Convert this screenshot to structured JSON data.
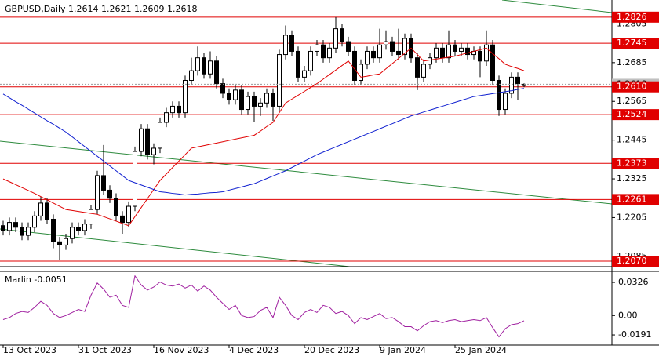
{
  "header": "GBPUSD,Daily  1.2614 1.2621 1.2609 1.2618",
  "chart_data": [
    {
      "type": "candlestick",
      "categories": [
        "13 Oct 2023",
        null,
        null,
        null,
        null,
        null,
        null,
        null,
        null,
        null,
        null,
        null,
        "31 Oct 2023",
        null,
        null,
        null,
        null,
        null,
        null,
        null,
        null,
        null,
        null,
        null,
        "16 Nov 2023",
        null,
        null,
        null,
        null,
        null,
        null,
        null,
        null,
        null,
        null,
        null,
        "4 Dec 2023",
        null,
        null,
        null,
        null,
        null,
        null,
        null,
        null,
        null,
        null,
        null,
        "20 Dec 2023",
        null,
        null,
        null,
        null,
        null,
        null,
        null,
        null,
        null,
        null,
        null,
        "9 Jan 2024",
        null,
        null,
        null,
        null,
        null,
        null,
        null,
        null,
        null,
        null,
        null,
        "25 Jan 2024",
        null,
        null,
        null,
        null,
        null,
        null,
        null,
        null,
        null,
        null,
        null
      ],
      "open": [
        1.218,
        1.2165,
        1.219,
        1.2175,
        1.215,
        1.2175,
        1.221,
        1.225,
        1.22,
        1.213,
        1.212,
        1.214,
        1.2175,
        1.2165,
        1.2185,
        1.223,
        1.2335,
        1.229,
        1.2265,
        1.221,
        1.219,
        1.224,
        1.241,
        1.248,
        1.24,
        1.242,
        1.25,
        1.253,
        1.255,
        1.253,
        1.263,
        1.266,
        1.27,
        1.265,
        1.269,
        1.262,
        1.259,
        1.257,
        1.26,
        1.254,
        1.258,
        1.255,
        1.256,
        1.259,
        1.255,
        1.271,
        1.277,
        1.272,
        1.264,
        1.266,
        1.272,
        1.274,
        1.27,
        1.273,
        1.279,
        1.275,
        1.272,
        1.263,
        1.268,
        1.272,
        1.27,
        1.274,
        1.275,
        1.272,
        1.271,
        1.276,
        1.27,
        1.264,
        1.268,
        1.27,
        1.273,
        1.27,
        1.274,
        1.272,
        1.273,
        1.271,
        1.272,
        1.269,
        1.274,
        1.263,
        1.254,
        1.259,
        1.264,
        1.2614
      ],
      "high": [
        1.2195,
        1.2205,
        1.2205,
        1.219,
        1.219,
        1.2225,
        1.227,
        1.2265,
        1.2215,
        1.2145,
        1.2155,
        1.219,
        1.219,
        1.22,
        1.2245,
        1.235,
        1.243,
        1.2305,
        1.228,
        1.2225,
        1.2255,
        1.2425,
        1.2495,
        1.2495,
        1.2435,
        1.2515,
        1.2545,
        1.2565,
        1.2565,
        1.2645,
        1.27,
        1.2735,
        1.2715,
        1.272,
        1.2705,
        1.2635,
        1.2605,
        1.2615,
        1.2615,
        1.2595,
        1.2595,
        1.2575,
        1.2605,
        1.2605,
        1.2725,
        1.28,
        1.2785,
        1.2735,
        1.2675,
        1.2735,
        1.2755,
        1.2755,
        1.2745,
        1.2826,
        1.2805,
        1.2765,
        1.2735,
        1.2695,
        1.2735,
        1.2735,
        1.279,
        1.2785,
        1.2765,
        1.279,
        1.2775,
        1.2775,
        1.2715,
        1.2695,
        1.2715,
        1.2745,
        1.2745,
        1.2785,
        1.2755,
        1.2745,
        1.2745,
        1.2735,
        1.2735,
        1.2785,
        1.2755,
        1.2645,
        1.2605,
        1.2655,
        1.2655,
        1.2621
      ],
      "low": [
        1.215,
        1.215,
        1.216,
        1.2135,
        1.2135,
        1.216,
        1.2195,
        1.2185,
        1.211,
        1.2075,
        1.2105,
        1.2125,
        1.215,
        1.215,
        1.217,
        1.2215,
        1.2275,
        1.225,
        1.2195,
        1.2155,
        1.2175,
        1.2225,
        1.2395,
        1.2385,
        1.237,
        1.2405,
        1.2485,
        1.2515,
        1.2515,
        1.2515,
        1.2615,
        1.2645,
        1.2635,
        1.2635,
        1.2605,
        1.2575,
        1.2555,
        1.2555,
        1.2525,
        1.2525,
        1.25,
        1.252,
        1.2545,
        1.2505,
        1.2535,
        1.2695,
        1.2705,
        1.2625,
        1.2625,
        1.2645,
        1.2705,
        1.2685,
        1.2685,
        1.2715,
        1.2735,
        1.2705,
        1.2615,
        1.2615,
        1.2665,
        1.2685,
        1.2685,
        1.2725,
        1.2705,
        1.2695,
        1.2695,
        1.2685,
        1.26,
        1.2625,
        1.2665,
        1.2685,
        1.2685,
        1.2685,
        1.2705,
        1.2705,
        1.2695,
        1.2695,
        1.264,
        1.2675,
        1.2615,
        1.252,
        1.2525,
        1.2575,
        1.257,
        1.2609
      ],
      "close": [
        1.2165,
        1.219,
        1.2175,
        1.215,
        1.2175,
        1.221,
        1.225,
        1.22,
        1.213,
        1.212,
        1.214,
        1.2175,
        1.2165,
        1.2185,
        1.223,
        1.2335,
        1.229,
        1.2265,
        1.221,
        1.219,
        1.224,
        1.241,
        1.248,
        1.24,
        1.242,
        1.25,
        1.253,
        1.255,
        1.253,
        1.263,
        1.266,
        1.27,
        1.265,
        1.269,
        1.262,
        1.259,
        1.257,
        1.26,
        1.254,
        1.258,
        1.255,
        1.256,
        1.259,
        1.255,
        1.271,
        1.277,
        1.272,
        1.264,
        1.266,
        1.272,
        1.274,
        1.27,
        1.273,
        1.279,
        1.275,
        1.272,
        1.263,
        1.268,
        1.272,
        1.27,
        1.274,
        1.275,
        1.272,
        1.271,
        1.276,
        1.27,
        1.264,
        1.268,
        1.27,
        1.273,
        1.27,
        1.274,
        1.272,
        1.273,
        1.271,
        1.272,
        1.269,
        1.274,
        1.263,
        1.254,
        1.259,
        1.264,
        1.262,
        1.2618
      ],
      "lines": [
        {
          "color": "#e00000",
          "values": [
            1.2325,
            1.2316,
            1.2307,
            1.2298,
            1.2289,
            1.228,
            1.227,
            1.226,
            1.225,
            1.224,
            1.223,
            1.2227,
            1.2224,
            1.2221,
            1.2218,
            1.2215,
            1.2208,
            1.2201,
            1.2194,
            1.2187,
            1.218,
            1.2208,
            1.2236,
            1.2264,
            1.2292,
            1.232,
            1.234,
            1.236,
            1.238,
            1.24,
            1.242,
            1.2424,
            1.2428,
            1.2432,
            1.2436,
            1.244,
            1.2444,
            1.2448,
            1.2452,
            1.2456,
            1.246,
            1.2473,
            1.2487,
            1.25,
            1.253,
            1.256,
            1.2572,
            1.2584,
            1.2596,
            1.2608,
            1.262,
            1.2634,
            1.2648,
            1.2662,
            1.2676,
            1.269,
            1.2665,
            1.264,
            1.2643,
            1.2647,
            1.265,
            1.2666,
            1.2682,
            1.2698,
            1.2714,
            1.273,
            1.271,
            1.269,
            1.2693,
            1.2696,
            1.2699,
            1.2702,
            1.2705,
            1.271,
            1.2715,
            1.272,
            1.2725,
            1.273,
            1.2713,
            1.2697,
            1.268,
            1.2673,
            1.2667,
            1.266
          ]
        },
        {
          "color": "#1020d0",
          "values": [
            1.2588,
            1.2576,
            1.2564,
            1.2553,
            1.2541,
            1.2529,
            1.2517,
            1.2505,
            1.2494,
            1.2482,
            1.247,
            1.2455,
            1.244,
            1.2425,
            1.241,
            1.2395,
            1.238,
            1.2365,
            1.235,
            1.2335,
            1.232,
            1.2313,
            1.2306,
            1.2299,
            1.2292,
            1.2285,
            1.2283,
            1.228,
            1.2278,
            1.2275,
            1.2277,
            1.2278,
            1.228,
            1.2282,
            1.2283,
            1.2285,
            1.229,
            1.2295,
            1.23,
            1.2305,
            1.231,
            1.2318,
            1.2326,
            1.2334,
            1.2342,
            1.235,
            1.236,
            1.237,
            1.238,
            1.239,
            1.24,
            1.2408,
            1.2416,
            1.2424,
            1.2432,
            1.244,
            1.2448,
            1.2456,
            1.2464,
            1.2472,
            1.248,
            1.2488,
            1.2496,
            1.2504,
            1.2512,
            1.252,
            1.2526,
            1.2532,
            1.2538,
            1.2544,
            1.255,
            1.2556,
            1.2562,
            1.2568,
            1.2574,
            1.258,
            1.2583,
            1.2586,
            1.2589,
            1.2592,
            1.2595,
            1.2598,
            1.2602,
            1.2605
          ]
        }
      ],
      "hlines": [
        1.2826,
        1.2745,
        {
          "value": 1.261,
          "label": "1.2610"
        },
        1.2524,
        1.2373,
        1.2261,
        {
          "value": 1.207,
          "label": "1.2070"
        }
      ],
      "hline_color": "#e00000",
      "price_label": 1.2618,
      "ylim": [
        1.2053,
        1.2879
      ],
      "yticks": [
        1.2805,
        1.2685,
        1.2565,
        1.2445,
        1.2325,
        1.2205,
        1.2085
      ]
    },
    {
      "type": "line",
      "title": "Marlin -0.0051",
      "color": "#a020a0",
      "values": [
        -0.004,
        -0.002,
        0.002,
        0.004,
        0.003,
        0.008,
        0.014,
        0.01,
        0.002,
        -0.002,
        0.0,
        0.003,
        0.006,
        0.004,
        0.02,
        0.032,
        0.026,
        0.018,
        0.02,
        0.01,
        0.008,
        0.039,
        0.03,
        0.025,
        0.028,
        0.033,
        0.03,
        0.029,
        0.031,
        0.027,
        0.03,
        0.024,
        0.029,
        0.025,
        0.018,
        0.012,
        0.006,
        0.01,
        0.0,
        -0.002,
        -0.001,
        0.005,
        0.008,
        -0.002,
        0.018,
        0.01,
        0.0,
        -0.004,
        0.003,
        0.006,
        0.003,
        0.01,
        0.008,
        0.002,
        0.004,
        0.0,
        -0.008,
        -0.002,
        -0.004,
        -0.001,
        0.002,
        -0.003,
        -0.002,
        -0.006,
        -0.011,
        -0.011,
        -0.015,
        -0.01,
        -0.006,
        -0.005,
        -0.007,
        -0.005,
        -0.004,
        -0.006,
        -0.005,
        -0.004,
        -0.005,
        -0.002,
        -0.012,
        -0.021,
        -0.013,
        -0.009,
        -0.008,
        -0.0051
      ],
      "ylim": [
        -0.0291,
        0.0419
      ],
      "yticks": [
        0.0326,
        {
          "value": 0,
          "label": "0.00"
        },
        -0.0191
      ]
    }
  ]
}
